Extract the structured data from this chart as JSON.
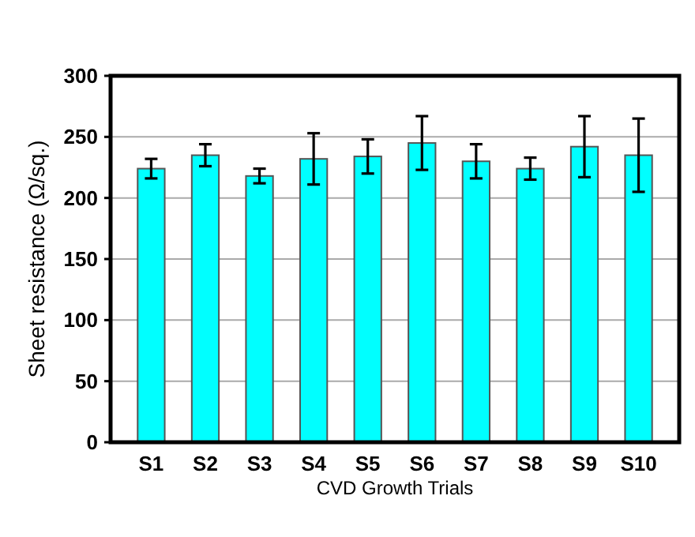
{
  "chart_data": {
    "type": "bar",
    "xlabel": "CVD Growth Trials",
    "ylabel": "Sheet resistance (Ω/sq.)",
    "categories": [
      "S1",
      "S2",
      "S3",
      "S4",
      "S5",
      "S6",
      "S7",
      "S8",
      "S9",
      "S10"
    ],
    "values": [
      224,
      235,
      218,
      232,
      234,
      245,
      230,
      224,
      242,
      235
    ],
    "errors": [
      8,
      9,
      6,
      21,
      14,
      22,
      14,
      9,
      25,
      30
    ],
    "color": "#00ffff",
    "ylim": [
      0,
      300
    ],
    "yticks": [
      0,
      50,
      100,
      150,
      200,
      250,
      300
    ],
    "grid": "y"
  }
}
